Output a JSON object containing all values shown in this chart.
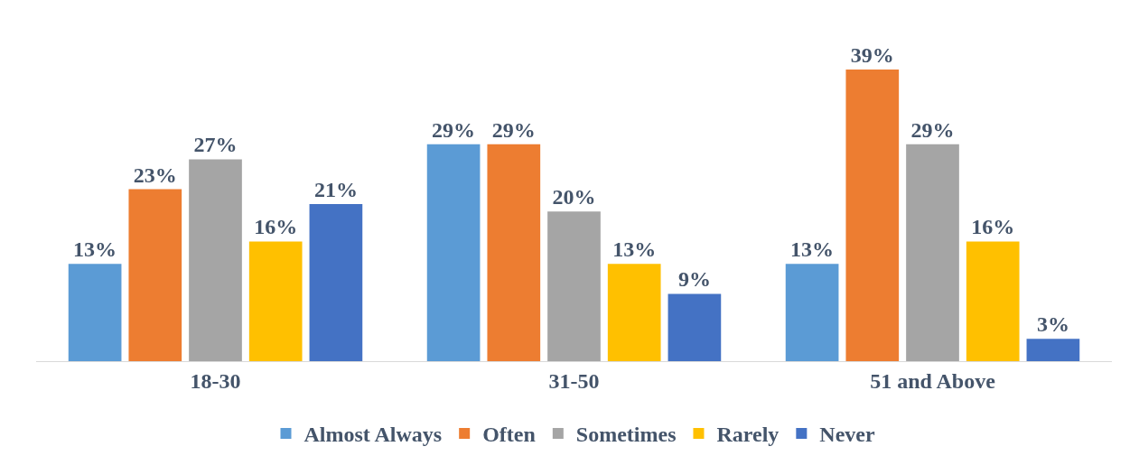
{
  "chart_data": {
    "type": "bar",
    "categories": [
      "18-30",
      "31-50",
      "51 and Above"
    ],
    "legend": "bottom",
    "grid": false,
    "series": [
      {
        "name": "Almost Always",
        "color": "#5b9bd5",
        "values": [
          13,
          29,
          13
        ],
        "value_labels": [
          "13%",
          "29%",
          "13%"
        ]
      },
      {
        "name": "Often",
        "color": "#ed7d31",
        "values": [
          23,
          29,
          39
        ],
        "value_labels": [
          "23%",
          "29%",
          "39%"
        ]
      },
      {
        "name": "Sometimes",
        "color": "#a5a5a5",
        "values": [
          27,
          20,
          29
        ],
        "value_labels": [
          "27%",
          "20%",
          "29%"
        ]
      },
      {
        "name": "Rarely",
        "color": "#ffc000",
        "values": [
          16,
          13,
          16
        ],
        "value_labels": [
          "16%",
          "13%",
          "16%"
        ]
      },
      {
        "name": "Never",
        "color": "#4472c4",
        "values": [
          21,
          9,
          3
        ],
        "value_labels": [
          "21%",
          "9%",
          "3%"
        ]
      }
    ]
  }
}
